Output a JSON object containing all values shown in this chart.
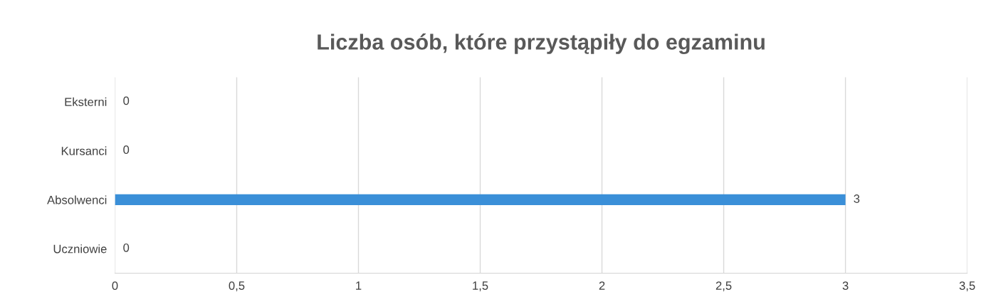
{
  "chart_data": {
    "type": "bar",
    "orientation": "horizontal",
    "title": "Liczba osób, które przystąpiły do egzaminu",
    "categories": [
      "Eksterni",
      "Kursanci",
      "Absolwenci",
      "Uczniowie"
    ],
    "values": [
      0,
      0,
      3,
      0
    ],
    "color": "#3a8fd8",
    "xlim": [
      0,
      3.5
    ],
    "xticks": [
      0,
      {
        "value": 0.5,
        "label": "0,5"
      },
      1,
      {
        "value": 1.5,
        "label": "1,5"
      },
      2,
      {
        "value": 2.5,
        "label": "2,5"
      },
      3,
      {
        "value": 3.5,
        "label": "3,5"
      }
    ],
    "grid": "x",
    "data_labels": true,
    "legend": false
  }
}
